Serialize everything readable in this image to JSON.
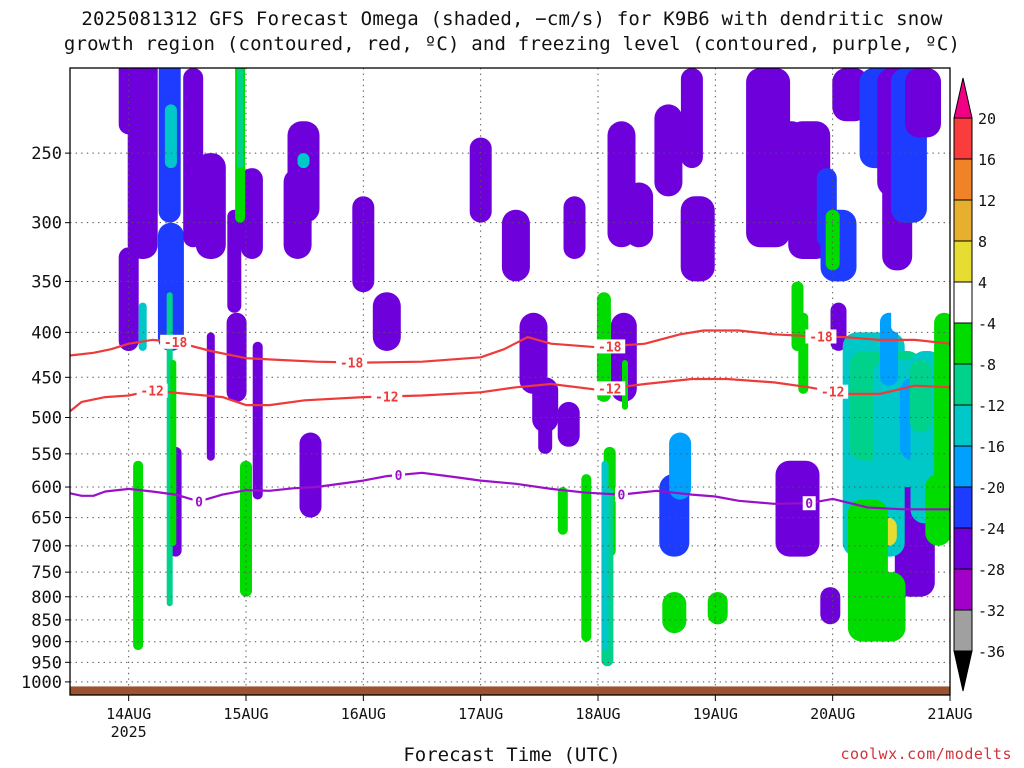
{
  "title_line1": "2025081312 GFS Forecast Omega (shaded, −cm/s) for K9B6 with dendritic snow",
  "title_line2": "growth region (contoured, red, ºC) and freezing level (contoured, purple, ºC)",
  "xlabel": "Forecast Time (UTC)",
  "credit": "coolwx.com/modelts",
  "colors": {
    "dgz_contour": "#ee3a3a",
    "freezing_contour": "#9a10c8",
    "ground": "#9b5230",
    "grid": "#555555"
  },
  "chart_data": {
    "type": "heatmap",
    "x_ticks": [
      {
        "day": "14AUG",
        "sub": "2025",
        "x": 13.0
      },
      {
        "day": "15AUG",
        "x": 14.0
      },
      {
        "day": "16AUG",
        "x": 15.0
      },
      {
        "day": "17AUG",
        "x": 16.0
      },
      {
        "day": "18AUG",
        "x": 17.0
      },
      {
        "day": "19AUG",
        "x": 18.0
      },
      {
        "day": "20AUG",
        "x": 19.0
      },
      {
        "day": "21AUG",
        "x": 20.0
      }
    ],
    "xlim": [
      12.5,
      20.0
    ],
    "y_scale": "log",
    "ylim": [
      1035,
      200
    ],
    "y_ticks": [
      250,
      300,
      350,
      400,
      450,
      500,
      550,
      600,
      650,
      700,
      750,
      800,
      850,
      900,
      950,
      1000
    ],
    "colorbar": {
      "levels": [
        -36,
        -32,
        -28,
        -24,
        -20,
        -16,
        -12,
        -8,
        -4,
        4,
        8,
        12,
        16,
        20
      ],
      "colors": [
        "#000000",
        "#a0a0a0",
        "#a000c8",
        "#6e00dc",
        "#1e3cff",
        "#00a0ff",
        "#00c8c8",
        "#00d28c",
        "#00dc00",
        "#ffffff",
        "#e6dc32",
        "#e6af2d",
        "#f08228",
        "#fa3c3c",
        "#f00082"
      ]
    },
    "contours": [
      {
        "label": "-18",
        "label_positions": [
          13.4,
          14.9,
          17.1,
          18.9
        ],
        "x": [
          12.5,
          12.7,
          12.85,
          13.0,
          13.2,
          13.4,
          13.7,
          14.0,
          14.3,
          14.6,
          15.0,
          15.5,
          16.0,
          16.2,
          16.4,
          16.6,
          17.0,
          17.4,
          17.7,
          17.9,
          18.2,
          18.5,
          18.8,
          19.1,
          19.4,
          19.7,
          20.0
        ],
        "y": [
          425,
          422,
          418,
          412,
          408,
          410,
          420,
          428,
          430,
          432,
          433,
          432,
          427,
          418,
          405,
          412,
          416,
          412,
          402,
          398,
          398,
          402,
          404,
          405,
          408,
          408,
          412
        ]
      },
      {
        "label": "-12",
        "label_positions": [
          13.2,
          15.2,
          17.1,
          19.0
        ],
        "x": [
          12.5,
          12.6,
          12.8,
          13.0,
          13.2,
          13.5,
          13.8,
          14.0,
          14.2,
          14.5,
          15.0,
          15.5,
          16.0,
          16.3,
          16.6,
          17.0,
          17.4,
          17.8,
          18.1,
          18.5,
          18.8,
          19.1,
          19.4,
          19.7,
          20.0
        ],
        "y": [
          492,
          480,
          474,
          472,
          466,
          470,
          474,
          484,
          484,
          478,
          474,
          472,
          468,
          462,
          458,
          465,
          458,
          452,
          452,
          456,
          462,
          470,
          470,
          460,
          462
        ]
      },
      {
        "label": "0",
        "label_positions": [
          13.6,
          15.3,
          17.2,
          18.8
        ],
        "x": [
          12.5,
          12.6,
          12.7,
          12.8,
          13.0,
          13.2,
          13.4,
          13.6,
          13.8,
          14.0,
          14.2,
          14.4,
          14.6,
          15.0,
          15.2,
          15.5,
          15.8,
          16.0,
          16.3,
          16.6,
          16.9,
          17.2,
          17.5,
          17.8,
          18.0,
          18.2,
          18.5,
          18.8,
          19.0,
          19.3,
          19.6,
          20.0
        ],
        "y": [
          610,
          614,
          614,
          607,
          603,
          607,
          612,
          623,
          612,
          605,
          606,
          602,
          600,
          590,
          583,
          578,
          585,
          590,
          595,
          603,
          609,
          612,
          606,
          612,
          615,
          622,
          627,
          626,
          619,
          633,
          636,
          636
        ]
      }
    ]
  }
}
